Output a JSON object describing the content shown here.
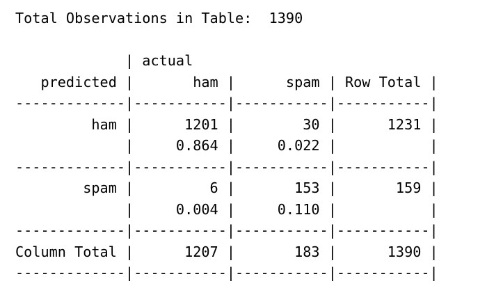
{
  "document": {
    "lines": [
      "Total Observations in Table:  1390",
      " ",
      "             | actual",
      "   predicted |       ham |      spam | Row Total |",
      "-------------|-----------|-----------|-----------|",
      "         ham |      1201 |        30 |      1231 |",
      "             |     0.864 |     0.022 |           |",
      "-------------|-----------|-----------|-----------|",
      "        spam |         6 |       153 |       159 |",
      "             |     0.004 |     0.110 |           |",
      "-------------|-----------|-----------|-----------|",
      "Column Total |      1207 |       183 |      1390 |",
      "-------------|-----------|-----------|-----------|"
    ]
  }
}
